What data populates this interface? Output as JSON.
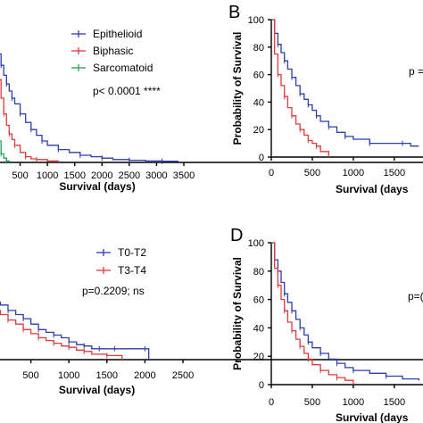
{
  "chart_data": [
    {
      "type": "line",
      "panel_letter": "",
      "xlabel": "Survival (days)",
      "ylabel": "",
      "x_ticks": [
        "500",
        "1000",
        "1500",
        "2000",
        "2500",
        "3000",
        "3500"
      ],
      "y_ticks": [],
      "xlim": [
        0,
        3500
      ],
      "ylim": [
        0,
        100
      ],
      "stat_text": "p< 0.0001 ****",
      "legend_position": "top-right",
      "series": [
        {
          "name": "Epithelioid",
          "color": "#2b3fae",
          "x": [
            0,
            30,
            60,
            100,
            150,
            200,
            250,
            300,
            350,
            400,
            500,
            600,
            700,
            800,
            900,
            1000,
            1200,
            1400,
            1600,
            1800,
            2000,
            2200,
            2500,
            2800,
            3100,
            3400
          ],
          "y": [
            100,
            92,
            84,
            76,
            68,
            61,
            55,
            50,
            45,
            41,
            34,
            28,
            23,
            19,
            15,
            12,
            9,
            7,
            5,
            4,
            3,
            2,
            1.5,
            1,
            0.8,
            0.8
          ]
        },
        {
          "name": "Biphasic",
          "color": "#e03a3a",
          "x": [
            0,
            50,
            100,
            150,
            200,
            250,
            300,
            350,
            400,
            500,
            600,
            700,
            800,
            1000,
            1200
          ],
          "y": [
            100,
            75,
            58,
            45,
            34,
            26,
            20,
            16,
            12,
            7,
            4,
            2.5,
            2,
            1,
            0
          ]
        },
        {
          "name": "Sarcomatoid",
          "color": "#22a25a",
          "x": [
            0,
            30,
            60,
            100,
            150,
            200,
            250,
            300
          ],
          "y": [
            100,
            55,
            30,
            15,
            6,
            3,
            1,
            0
          ]
        }
      ]
    },
    {
      "type": "line",
      "panel_letter": "B",
      "xlabel": "Survival (days",
      "ylabel": "Probability of Survival",
      "x_ticks": [
        "0",
        "500",
        "1000",
        "1500"
      ],
      "y_ticks": [
        "0",
        "20",
        "40",
        "60",
        "80",
        "100"
      ],
      "xlim": [
        0,
        1850
      ],
      "ylim": [
        0,
        100
      ],
      "stat_text": "p =",
      "series": [
        {
          "name": "",
          "color": "#2b3fae",
          "x": [
            0,
            40,
            80,
            120,
            160,
            200,
            250,
            300,
            350,
            400,
            450,
            500,
            550,
            600,
            700,
            800,
            900,
            1000,
            1200,
            1400,
            1600,
            1700,
            1800
          ],
          "y": [
            100,
            90,
            82,
            76,
            70,
            64,
            58,
            52,
            46,
            42,
            38,
            34,
            30,
            26,
            22,
            18,
            15,
            13,
            10,
            10,
            10,
            8,
            8
          ]
        },
        {
          "name": "",
          "color": "#e03a3a",
          "x": [
            0,
            40,
            80,
            120,
            160,
            200,
            250,
            300,
            350,
            400,
            450,
            500,
            550,
            600,
            700
          ],
          "y": [
            100,
            75,
            60,
            52,
            44,
            36,
            30,
            24,
            20,
            16,
            12,
            10,
            8,
            4,
            0
          ]
        }
      ]
    },
    {
      "type": "line",
      "panel_letter": "",
      "xlabel": "Survival (days)",
      "ylabel": "",
      "x_ticks": [
        "500",
        "1000",
        "1500",
        "2000",
        "2500"
      ],
      "y_ticks": [],
      "xlim": [
        0,
        2500
      ],
      "ylim": [
        0,
        100
      ],
      "stat_text": "p=0.2209; ns",
      "legend_position": "top-right",
      "series": [
        {
          "name": "T0-T2",
          "color": "#2b3fae",
          "x": [
            0,
            100,
            200,
            300,
            400,
            500,
            600,
            700,
            800,
            900,
            1000,
            1100,
            1200,
            1300,
            1400,
            1500,
            1600,
            1800,
            2000,
            2050
          ],
          "y": [
            42,
            40,
            36,
            33,
            30,
            26,
            22,
            20,
            18,
            16,
            13,
            11,
            10,
            8,
            8,
            8,
            8,
            8,
            8,
            0
          ]
        },
        {
          "name": "T3-T4",
          "color": "#e03a3a",
          "x": [
            0,
            100,
            200,
            300,
            400,
            500,
            600,
            700,
            800,
            900,
            1000,
            1100,
            1200,
            1300,
            1500,
            1700
          ],
          "y": [
            36,
            33,
            29,
            26,
            22,
            19,
            16,
            14,
            12,
            10,
            9,
            7,
            6,
            4,
            3,
            0
          ]
        }
      ]
    },
    {
      "type": "line",
      "panel_letter": "D",
      "xlabel": "Survival (days",
      "ylabel": "Probability of Survival",
      "x_ticks": [
        "0",
        "500",
        "1000",
        "1500"
      ],
      "y_ticks": [
        "0",
        "20",
        "40",
        "60",
        "80",
        "100"
      ],
      "xlim": [
        0,
        1850
      ],
      "ylim": [
        0,
        100
      ],
      "stat_text": "p=(",
      "series": [
        {
          "name": "",
          "color": "#2b3fae",
          "x": [
            0,
            40,
            80,
            120,
            160,
            200,
            250,
            300,
            350,
            400,
            450,
            500,
            600,
            700,
            800,
            900,
            1000,
            1200,
            1400,
            1600,
            1800
          ],
          "y": [
            100,
            88,
            80,
            72,
            64,
            58,
            52,
            46,
            40,
            35,
            30,
            26,
            22,
            18,
            15,
            12,
            10,
            8,
            6,
            4,
            3
          ]
        },
        {
          "name": "",
          "color": "#e03a3a",
          "x": [
            0,
            40,
            80,
            120,
            160,
            200,
            250,
            300,
            350,
            400,
            450,
            500,
            600,
            700,
            800,
            900,
            1000
          ],
          "y": [
            100,
            82,
            70,
            60,
            52,
            44,
            38,
            32,
            27,
            22,
            18,
            14,
            10,
            7,
            5,
            3,
            0
          ]
        }
      ]
    }
  ]
}
